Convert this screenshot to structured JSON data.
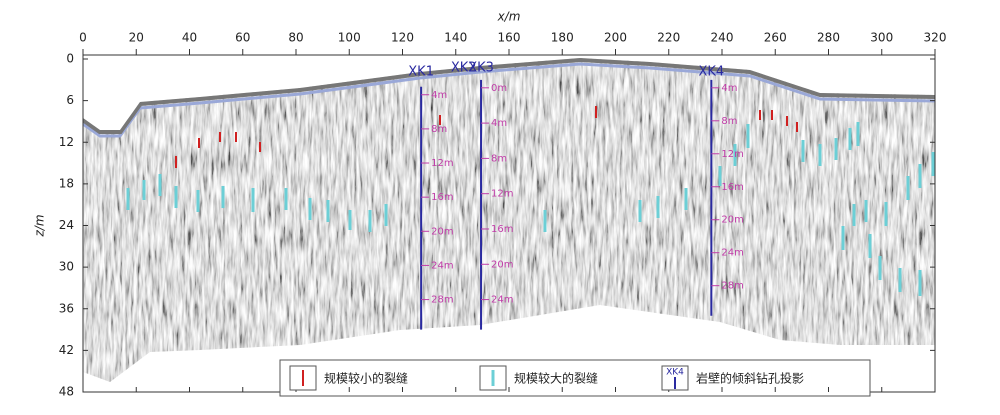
{
  "chart_data": {
    "type": "profile",
    "x_label": "x/m",
    "y_label": "z/m",
    "xlim": [
      0,
      320
    ],
    "xticks": [
      0,
      20,
      40,
      60,
      80,
      100,
      120,
      140,
      160,
      180,
      200,
      220,
      240,
      260,
      280,
      300,
      320
    ],
    "ylim": [
      0,
      48
    ],
    "yticks": [
      0,
      6,
      12,
      18,
      24,
      30,
      36,
      42,
      48
    ],
    "y_inverted": true,
    "boreholes": [
      {
        "name": "XK1",
        "x": 127,
        "z_top": 4,
        "z_bottom": 39,
        "depth_labels": [
          "4m",
          "8m",
          "12m",
          "16m",
          "20m",
          "24m",
          "28m"
        ]
      },
      {
        "name": "XK2",
        "x": 143,
        "depth_labels": []
      },
      {
        "name": "XK3",
        "x": 149.5,
        "z_top": 3,
        "z_bottom": 39,
        "depth_labels": [
          "0m",
          "4m",
          "8m",
          "12m",
          "16m",
          "20m",
          "24m"
        ]
      },
      {
        "name": "XK4",
        "x": 236,
        "z_top": 3,
        "z_bottom": 37,
        "depth_labels": [
          "4m",
          "8m",
          "12m",
          "16m",
          "20m",
          "24m",
          "28m"
        ]
      }
    ],
    "legend": [
      {
        "name": "规模较小的裂缝",
        "color": "#d02020"
      },
      {
        "name": "规模较大的裂缝",
        "color": "#6ccfd6"
      },
      {
        "name": "岩壁的倾斜钻孔投影",
        "color": "#2a2aa0",
        "icon_label": "XK4"
      }
    ]
  }
}
